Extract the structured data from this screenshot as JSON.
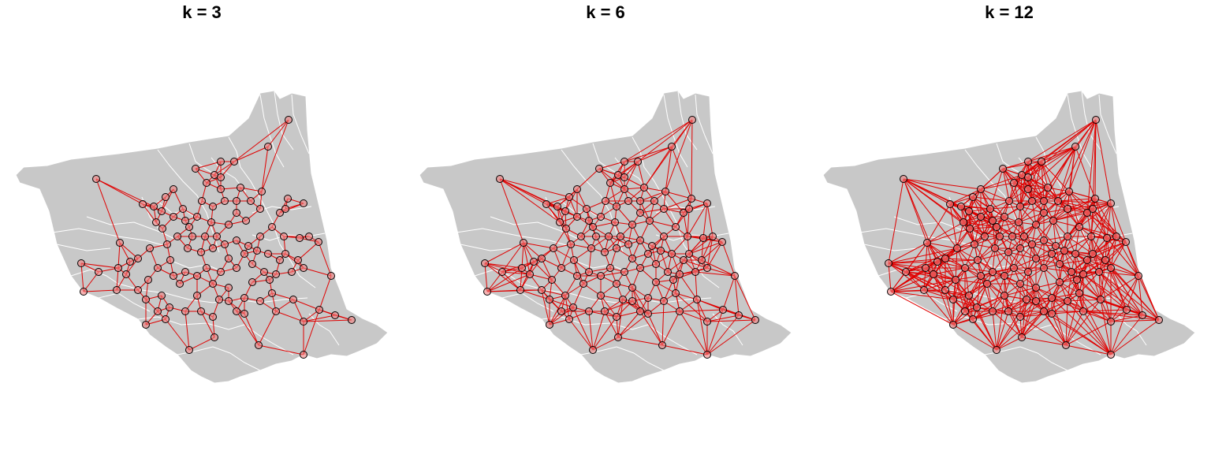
{
  "panels": [
    {
      "title": "k = 3",
      "k": 3
    },
    {
      "title": "k = 6",
      "k": 6
    },
    {
      "title": "k = 12",
      "k": 12
    }
  ],
  "colors": {
    "region_fill": "#c8c8c8",
    "boundary": "#ffffff",
    "edge": "#e00000",
    "node_fill": "#f08080",
    "node_stroke": "#000000",
    "background": "#ffffff"
  }
}
